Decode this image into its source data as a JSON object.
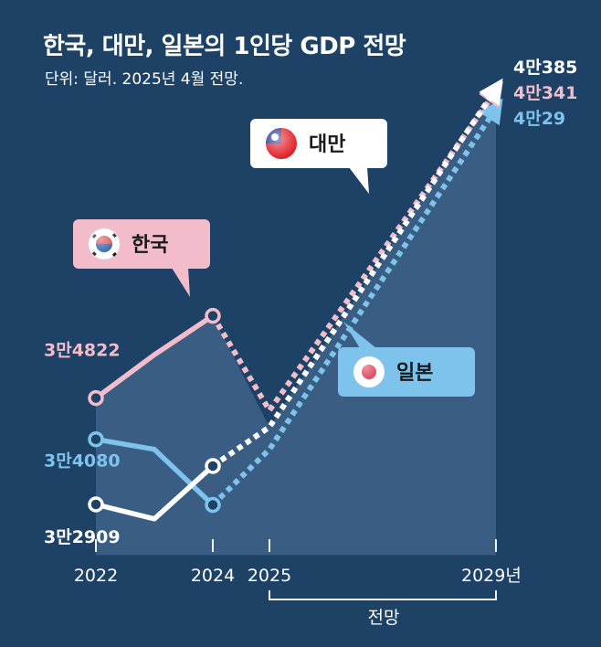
{
  "title": "한국, 대만, 일본의 1인당 GDP 전망",
  "subtitle": "단위: 달러. 2025년 4월 전망.",
  "forecast_label": "전망",
  "colors": {
    "background": "#1d4266",
    "area": "#3f6288",
    "korea": "#f2bccb",
    "taiwan": "#ffffff",
    "japan": "#7ec3eb",
    "grid": "#f0f2f4"
  },
  "chart_data": {
    "type": "line",
    "x_ticks": [
      {
        "x": 2022,
        "label": "2022"
      },
      {
        "x": 2024,
        "label": "2024"
      },
      {
        "x": 2025,
        "label": "2025"
      },
      {
        "x": 2029,
        "label": "2029년"
      }
    ],
    "xlim": [
      2022,
      2029
    ],
    "ylim": [
      32000,
      41000
    ],
    "series": [
      {
        "name": "한국",
        "color": "#f2bccb",
        "actual": [
          {
            "x": 2022,
            "y": 34822
          },
          {
            "x": 2023,
            "y": 35600
          },
          {
            "x": 2024,
            "y": 36300
          }
        ],
        "forecast": [
          {
            "x": 2024,
            "y": 36300
          },
          {
            "x": 2025,
            "y": 34600
          },
          {
            "x": 2029,
            "y": 40341
          }
        ],
        "start_label": "3만4822",
        "end_label": "4만341",
        "flag": "korea-flag"
      },
      {
        "name": "대만",
        "color": "#ffffff",
        "actual": [
          {
            "x": 2022,
            "y": 32909
          },
          {
            "x": 2023,
            "y": 32650
          },
          {
            "x": 2024,
            "y": 33600
          }
        ],
        "forecast": [
          {
            "x": 2024,
            "y": 33600
          },
          {
            "x": 2025,
            "y": 34300
          },
          {
            "x": 2029,
            "y": 40385
          }
        ],
        "start_label": "3만2909",
        "end_label": "4만385",
        "flag": "taiwan-flag"
      },
      {
        "name": "일본",
        "color": "#7ec3eb",
        "actual": [
          {
            "x": 2022,
            "y": 34080
          },
          {
            "x": 2023,
            "y": 33900
          },
          {
            "x": 2024,
            "y": 32900
          }
        ],
        "forecast": [
          {
            "x": 2024,
            "y": 32900
          },
          {
            "x": 2025,
            "y": 33900
          },
          {
            "x": 2029,
            "y": 40029
          }
        ],
        "start_label": "3만4080",
        "end_label": "4만29",
        "flag": "japan-flag"
      }
    ]
  }
}
